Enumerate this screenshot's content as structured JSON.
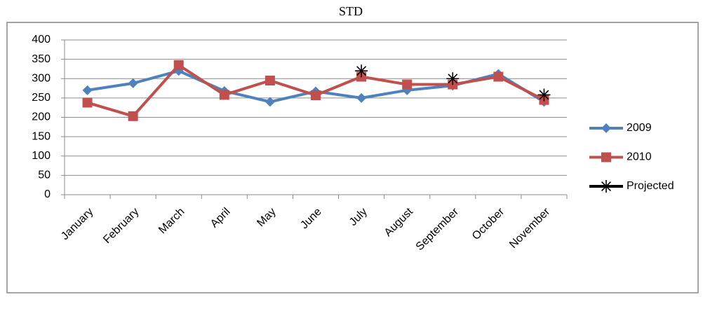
{
  "chart_data": {
    "type": "line",
    "title": "STD",
    "categories": [
      "January",
      "February",
      "March",
      "April",
      "May",
      "June",
      "July",
      "August",
      "September",
      "October",
      "November"
    ],
    "series": [
      {
        "name": "2009",
        "color": "#4f81bd",
        "marker": "diamond",
        "values": [
          270,
          288,
          320,
          268,
          240,
          267,
          250,
          270,
          282,
          312,
          240
        ]
      },
      {
        "name": "2010",
        "color": "#c0504d",
        "marker": "square",
        "values": [
          238,
          203,
          335,
          258,
          295,
          257,
          305,
          285,
          285,
          305,
          245
        ]
      },
      {
        "name": "Projected",
        "color": "#000000",
        "marker": "asterisk",
        "values": [
          null,
          null,
          null,
          null,
          null,
          null,
          320,
          null,
          300,
          null,
          258
        ]
      }
    ],
    "ylim": [
      0,
      400
    ],
    "yticks": [
      0,
      50,
      100,
      150,
      200,
      250,
      300,
      350,
      400
    ],
    "grid": true,
    "legend": "right"
  }
}
